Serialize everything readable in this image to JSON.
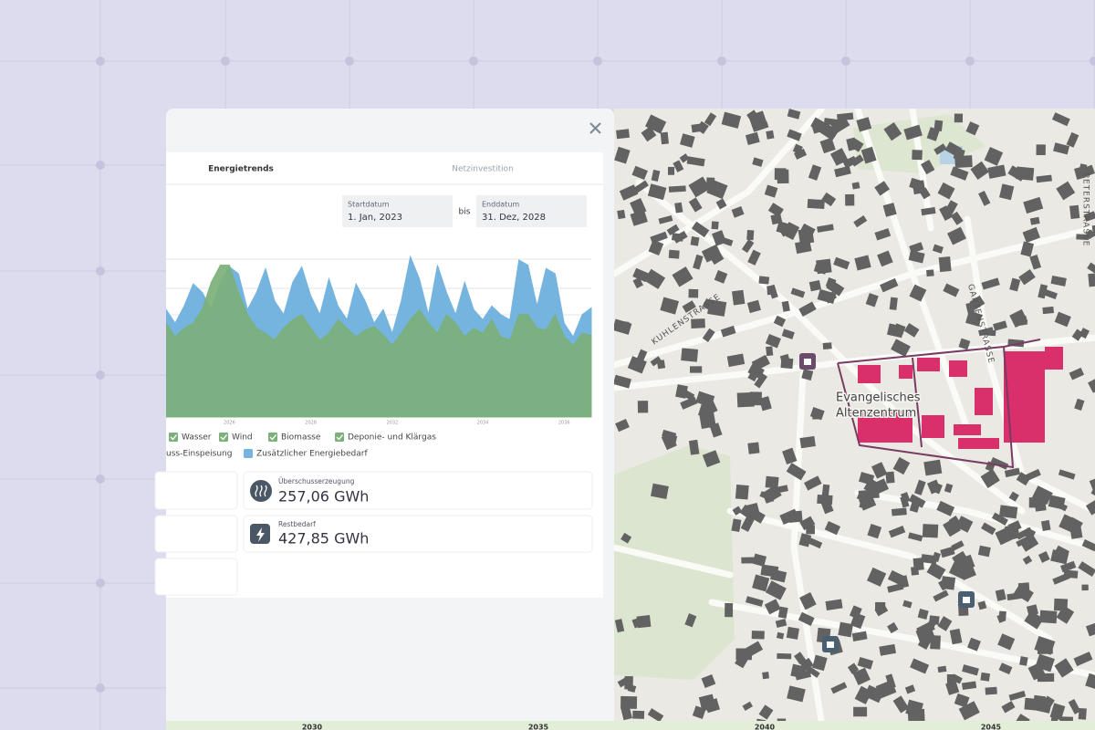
{
  "panel": {
    "tabs": [
      "Energietrends",
      "Netzinvestition"
    ],
    "start": {
      "label": "Startdatum",
      "value": "1. Jan, 2023"
    },
    "between": "bis",
    "end": {
      "label": "Enddatum",
      "value": "31. Dez, 2028"
    }
  },
  "chart_data": {
    "type": "area",
    "categories": [
      null,
      null,
      null,
      null,
      null,
      null,
      null,
      "2026",
      null,
      null,
      null,
      null,
      null,
      null,
      null,
      null,
      "2028",
      null,
      null,
      null,
      null,
      null,
      null,
      null,
      null,
      "2032",
      null,
      null,
      null,
      null,
      null,
      null,
      null,
      null,
      null,
      "2034",
      null,
      null,
      null,
      null,
      null,
      null,
      null,
      null,
      "2036",
      null,
      null,
      null
    ],
    "ylim": [
      0,
      100
    ],
    "series": [
      {
        "color": "#74b4de",
        "values": [
          63,
          55,
          65,
          78,
          73,
          63,
          79,
          88,
          84,
          63,
          73,
          87,
          68,
          60,
          79,
          88,
          71,
          60,
          81,
          65,
          57,
          78,
          68,
          55,
          63,
          49,
          68,
          94,
          81,
          60,
          89,
          73,
          60,
          79,
          63,
          57,
          65,
          60,
          57,
          92,
          89,
          65,
          87,
          84,
          55,
          47,
          60,
          64
        ]
      },
      {
        "color": "#7bb07a",
        "values": [
          55,
          47,
          52,
          55,
          63,
          79,
          89,
          89,
          73,
          60,
          52,
          49,
          45,
          52,
          57,
          60,
          52,
          45,
          49,
          57,
          52,
          47,
          51,
          53,
          48,
          42,
          49,
          57,
          63,
          55,
          49,
          60,
          55,
          47,
          52,
          49,
          57,
          47,
          45,
          60,
          60,
          52,
          51,
          60,
          47,
          42,
          49,
          48
        ]
      }
    ],
    "legend": [
      {
        "label": "Wasser",
        "color": "#7bb07a"
      },
      {
        "label": "Wind",
        "color": "#7bb07a"
      },
      {
        "label": "Biomasse",
        "color": "#7bb07a"
      },
      {
        "label": "Deponie- und Klärgas",
        "color": "#7bb07a"
      },
      {
        "label": "uss-Einspeisung"
      },
      {
        "label": "Zusätzlicher Energiebedarf",
        "color": "#74b4de"
      }
    ]
  },
  "cards": [
    {
      "label": "Überschusserzeugung",
      "value": "257,06 GWh"
    },
    {
      "label": "Restbedarf",
      "value": "427,85 GWh"
    }
  ],
  "map": {
    "streets": [
      "KUHLENSTRASSE",
      "GARTENSTRASSE",
      "PETERSTRASSE"
    ],
    "place": [
      "Evangelisches",
      "Altenzentrum"
    ]
  },
  "timeline": [
    "2030",
    "2035",
    "2040",
    "2045"
  ]
}
